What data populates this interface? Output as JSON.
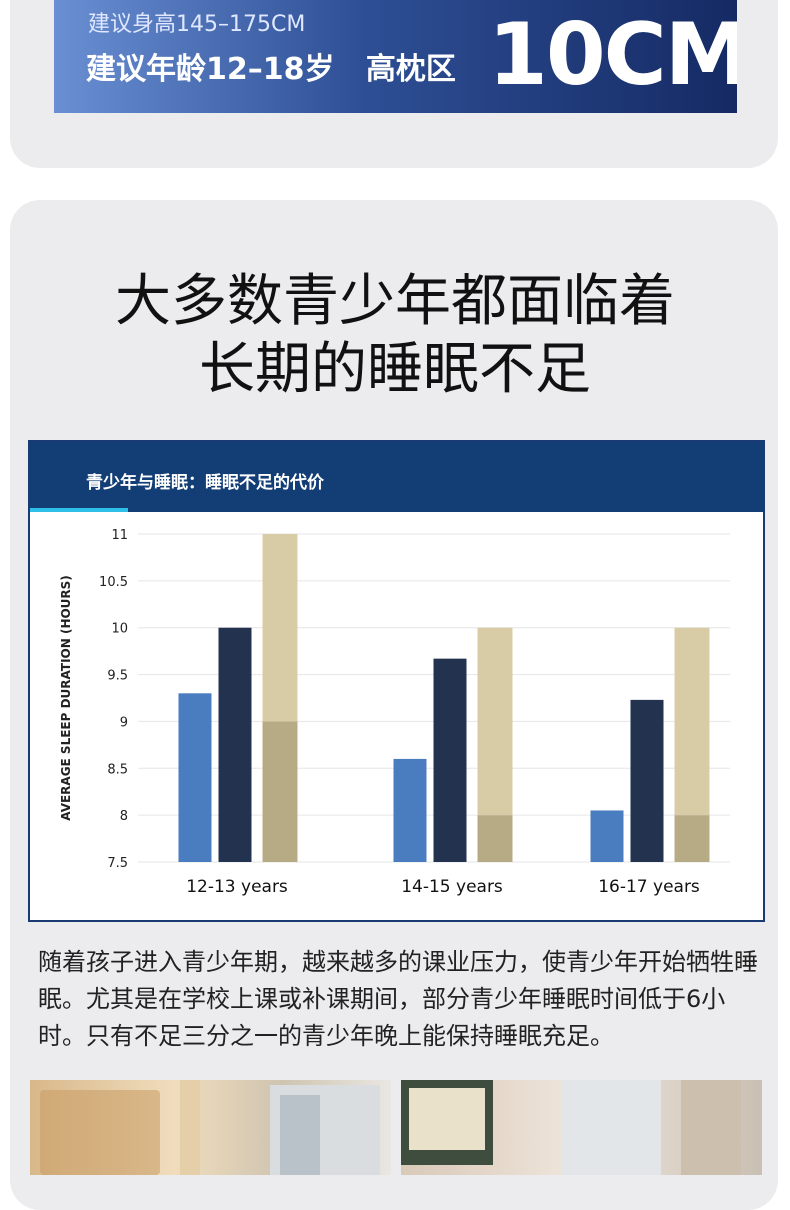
{
  "banner": {
    "height_line": "建议身高145–175CM",
    "age_line": "建议年龄12–18岁   高枕区",
    "big_size": "10CM"
  },
  "headline": {
    "line1": "大多数青少年都面临着",
    "line2": "长期的睡眠不足"
  },
  "chart_header": "青少年与睡眠：睡眠不足的代价",
  "chart_data": {
    "type": "bar",
    "ylabel": "AVERAGE SLEEP DURATION (HOURS)",
    "xlabel": "",
    "ylim": [
      7.5,
      11
    ],
    "yticks": [
      "7.5",
      "8",
      "8.5",
      "9",
      "9.5",
      "10",
      "10.5",
      "11"
    ],
    "grid": true,
    "categories": [
      "12-13 years",
      "14-15 years",
      "16-17 years"
    ],
    "series": [
      {
        "values": [
          9.3,
          8.6,
          8.05
        ],
        "color": "#4a7cc0"
      },
      {
        "values": [
          10.0,
          9.67,
          9.23
        ],
        "color": "#23324f"
      },
      {
        "values": [
          9.0,
          8.0,
          8.0
        ],
        "color": "#b7ab86"
      },
      {
        "values": [
          11.0,
          10.0,
          10.0
        ],
        "color": "#d8cca6"
      }
    ]
  },
  "body_text": "随着孩子进入青少年期，越来越多的课业压力，使青少年开始牺牲睡眠。尤其是在学校上课或补课期间，部分青少年睡眠时间低于6小时。只有不足三分之一的青少年晚上能保持睡眠充足。"
}
